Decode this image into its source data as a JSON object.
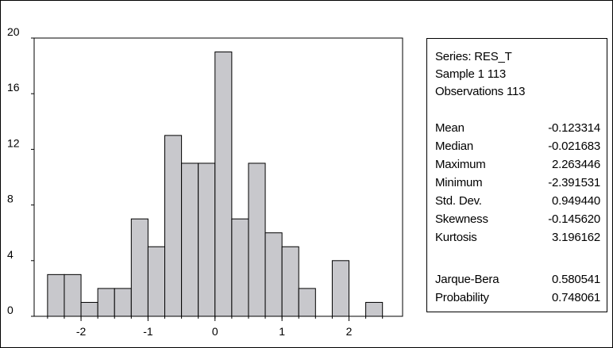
{
  "chart_data": {
    "type": "bar",
    "title": "",
    "xlabel": "",
    "ylabel": "",
    "bin_width": 0.25,
    "bins": [
      {
        "start": -2.5,
        "end": -2.25,
        "count": 3
      },
      {
        "start": -2.25,
        "end": -2.0,
        "count": 3
      },
      {
        "start": -2.0,
        "end": -1.75,
        "count": 1
      },
      {
        "start": -1.75,
        "end": -1.5,
        "count": 2
      },
      {
        "start": -1.5,
        "end": -1.25,
        "count": 2
      },
      {
        "start": -1.25,
        "end": -1.0,
        "count": 7
      },
      {
        "start": -1.0,
        "end": -0.75,
        "count": 5
      },
      {
        "start": -0.75,
        "end": -0.5,
        "count": 13
      },
      {
        "start": -0.5,
        "end": -0.25,
        "count": 11
      },
      {
        "start": -0.25,
        "end": 0.0,
        "count": 11
      },
      {
        "start": 0.0,
        "end": 0.25,
        "count": 19
      },
      {
        "start": 0.25,
        "end": 0.5,
        "count": 7
      },
      {
        "start": 0.5,
        "end": 0.75,
        "count": 11
      },
      {
        "start": 0.75,
        "end": 1.0,
        "count": 6
      },
      {
        "start": 1.0,
        "end": 1.25,
        "count": 5
      },
      {
        "start": 1.25,
        "end": 1.5,
        "count": 2
      },
      {
        "start": 1.5,
        "end": 1.75,
        "count": 0
      },
      {
        "start": 1.75,
        "end": 2.0,
        "count": 4
      },
      {
        "start": 2.0,
        "end": 2.25,
        "count": 0
      },
      {
        "start": 2.25,
        "end": 2.5,
        "count": 1
      }
    ],
    "xlim": [
      -2.7,
      2.8
    ],
    "ylim": [
      0,
      20
    ],
    "x_ticks": [
      -2,
      -1,
      0,
      1,
      2
    ],
    "x_tick_labels": [
      "-2",
      "-1",
      "0",
      "1",
      "2"
    ],
    "y_ticks": [
      0,
      4,
      8,
      12,
      16,
      20
    ],
    "y_tick_labels": [
      "0",
      "4",
      "8",
      "12",
      "16",
      "20"
    ],
    "grid": false,
    "bar_color": "#c8c8cc",
    "bar_edge_color": "#000000"
  },
  "stats": {
    "series_line": "Series: RES_T",
    "sample_line": "Sample 1 113",
    "observations_line": "Observations 113",
    "rows": [
      {
        "label": "Mean",
        "value": "-0.123314"
      },
      {
        "label": "Median",
        "value": "-0.021683"
      },
      {
        "label": "Maximum",
        "value": "2.263446"
      },
      {
        "label": "Minimum",
        "value": "-2.391531"
      },
      {
        "label": "Std. Dev.",
        "value": "0.949440"
      },
      {
        "label": "Skewness",
        "value": "-0.145620"
      },
      {
        "label": "Kurtosis",
        "value": "3.196162"
      }
    ],
    "test_rows": [
      {
        "label": "Jarque-Bera",
        "value": "0.580541"
      },
      {
        "label": "Probability",
        "value": "0.748061"
      }
    ]
  }
}
